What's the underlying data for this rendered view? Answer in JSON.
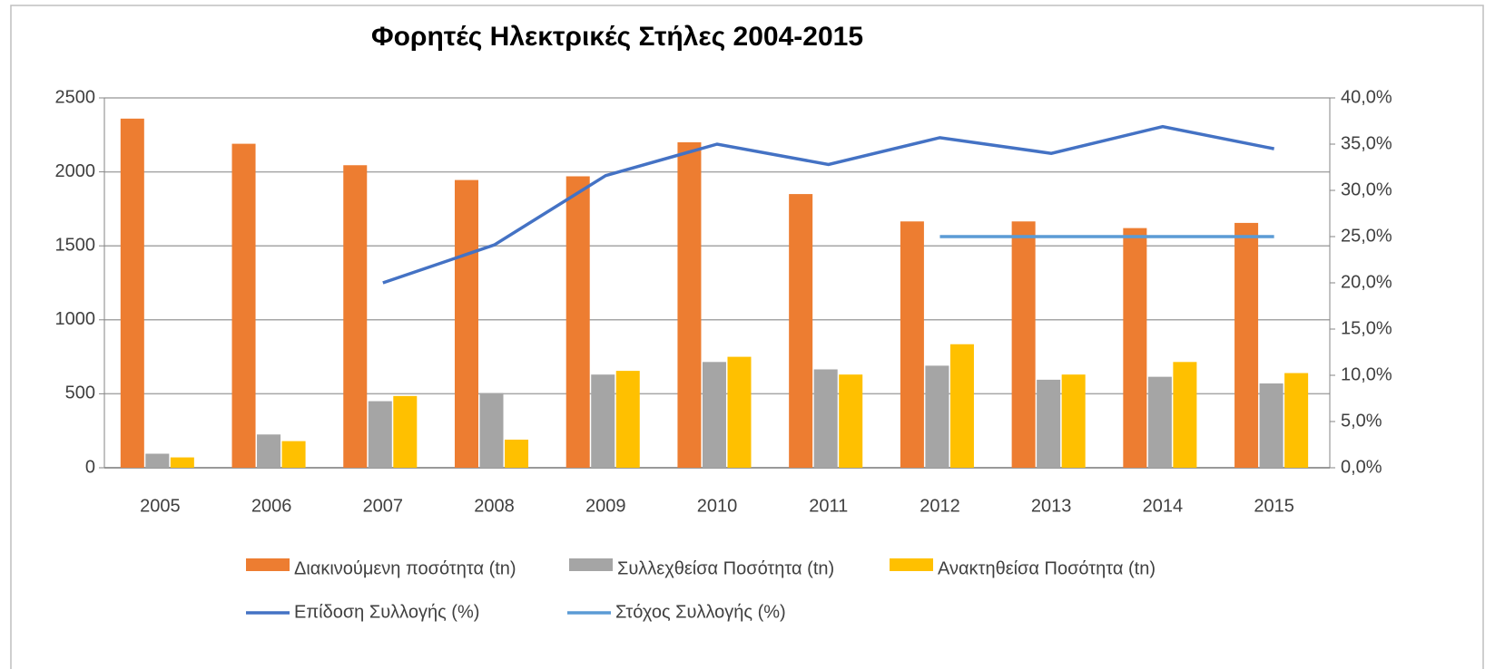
{
  "chart_data": {
    "type": "bar",
    "title": "Φορητές Ηλεκτρικές Στήλες 2004-2015",
    "categories": [
      "2005",
      "2006",
      "2007",
      "2008",
      "2009",
      "2010",
      "2011",
      "2012",
      "2013",
      "2014",
      "2015"
    ],
    "series": [
      {
        "name": "Διακινούμενη ποσότητα  (tn)",
        "color": "#ed7d31",
        "values": [
          2360,
          2190,
          2045,
          1945,
          1970,
          2200,
          1850,
          1665,
          1665,
          1620,
          1655
        ]
      },
      {
        "name": "Συλλεχθείσα Ποσότητα (tn)",
        "color": "#a5a5a5",
        "values": [
          95,
          225,
          450,
          505,
          630,
          715,
          665,
          690,
          595,
          615,
          570
        ]
      },
      {
        "name": "Ανακτηθείσα Ποσότητα  (tn)",
        "color": "#ffc000",
        "values": [
          70,
          180,
          485,
          190,
          655,
          750,
          630,
          835,
          630,
          715,
          640
        ]
      },
      {
        "name": "Επίδοση Συλλογής (%)",
        "color": "#4472c4",
        "type": "line",
        "axis": "y2",
        "values": [
          null,
          null,
          20.0,
          24.1,
          31.6,
          35.0,
          32.8,
          35.7,
          34.0,
          36.9,
          34.5
        ]
      },
      {
        "name": "Στόχος Συλλογής (%)",
        "color": "#5b9bd5",
        "type": "line",
        "axis": "y2",
        "values": [
          null,
          null,
          null,
          null,
          null,
          null,
          null,
          25.0,
          25.0,
          25.0,
          25.0
        ]
      }
    ],
    "ylim": [
      0,
      2500
    ],
    "yticks": [
      0,
      500,
      1000,
      1500,
      2000,
      2500
    ],
    "y2lim": [
      0,
      40
    ],
    "y2ticks": [
      {
        "value": 0,
        "label": "0,0%"
      },
      {
        "value": 5,
        "label": "5,0%"
      },
      {
        "value": 10,
        "label": "10,0%"
      },
      {
        "value": 15,
        "label": "15,0%"
      },
      {
        "value": 20,
        "label": "20,0%"
      },
      {
        "value": 25,
        "label": "25,0%"
      },
      {
        "value": 30,
        "label": "30,0%"
      },
      {
        "value": 35,
        "label": "35,0%"
      },
      {
        "value": 40,
        "label": "40,0%"
      }
    ],
    "grid": true,
    "legend": "bottom"
  }
}
